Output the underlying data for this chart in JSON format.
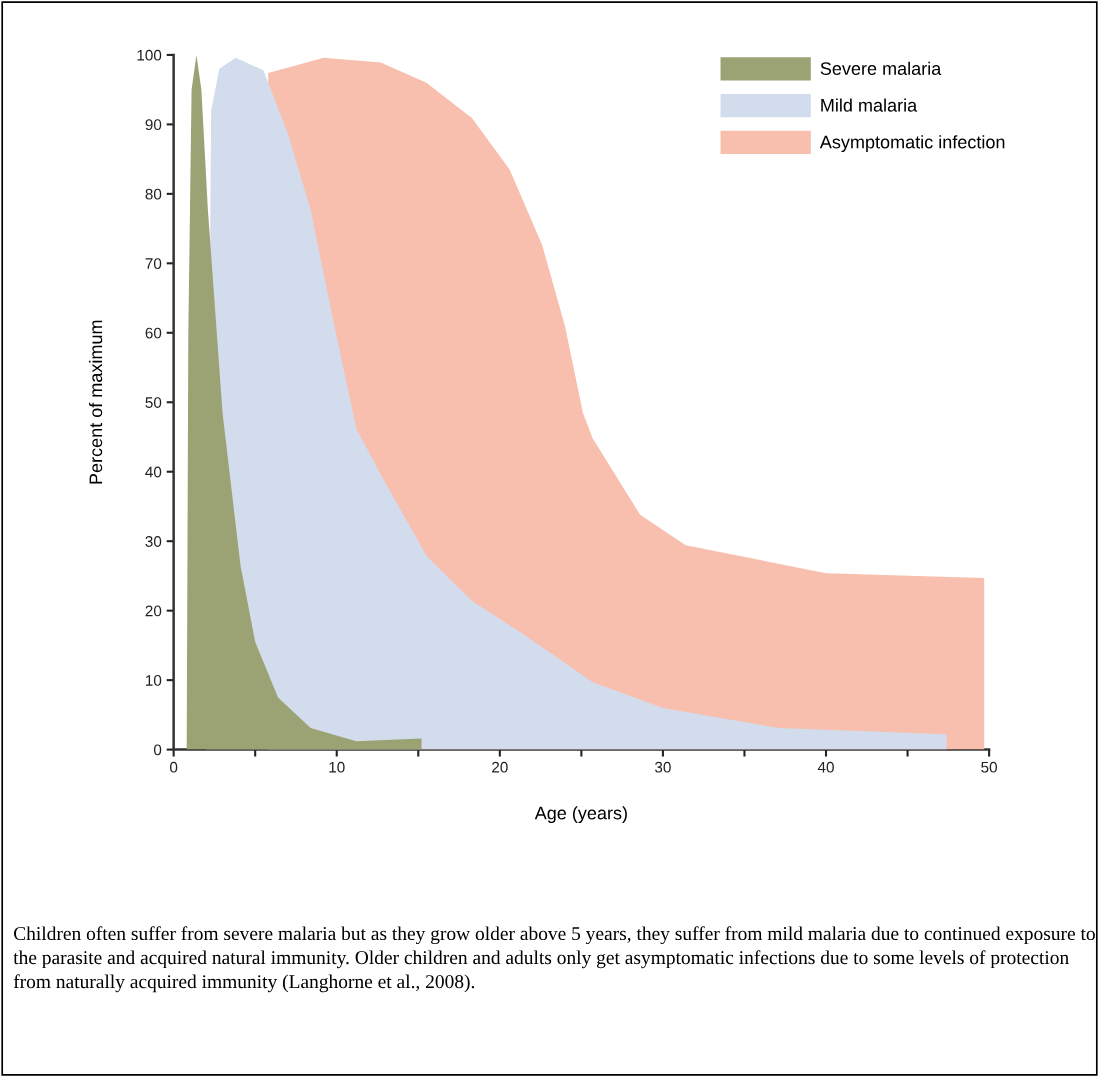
{
  "chart_data": {
    "type": "area",
    "xlabel": "Age (years)",
    "ylabel": "Percent of maximum",
    "xlim": [
      0,
      50
    ],
    "ylim": [
      0,
      100
    ],
    "xticks": [
      0,
      {
        "value": 5,
        "label": null
      },
      10,
      {
        "value": 15,
        "label": null
      },
      20,
      {
        "value": 25,
        "label": null
      },
      30,
      {
        "value": 35,
        "label": null
      },
      40,
      {
        "value": 45,
        "label": null
      },
      50
    ],
    "yticks": [
      0,
      10,
      20,
      30,
      40,
      50,
      60,
      70,
      80,
      90,
      100
    ],
    "grid": false,
    "legend": "top right",
    "series": [
      {
        "name": "Severe malaria",
        "color": "#9ba274",
        "x": [
          0.8,
          0.9,
          1.1,
          1.4,
          1.7,
          2.1,
          3.0,
          4.1,
          5.0,
          6.4,
          8.4,
          11.2,
          15.2,
          15.2
        ],
        "values": [
          0,
          60,
          95,
          100,
          95,
          77.7,
          48.4,
          26.5,
          15.5,
          7.5,
          3.1,
          1.2,
          1.6,
          0
        ]
      },
      {
        "name": "Mild malaria",
        "color": "#d3dcec",
        "x": [
          2.0,
          2.3,
          2.8,
          3.8,
          5.5,
          7.0,
          8.4,
          9.8,
          11.2,
          12.7,
          15.5,
          18.3,
          21.2,
          25.7,
          30,
          37.1,
          47.4,
          47.4
        ],
        "values": [
          0,
          92,
          98,
          99.6,
          97.8,
          88.7,
          77.7,
          61.6,
          46.2,
          39.6,
          27.9,
          21.4,
          17,
          9.7,
          6,
          3.1,
          2.2,
          0
        ]
      },
      {
        "name": "Asymptomatic infection",
        "color": "#f8bfae",
        "x": [
          5.8,
          5.8,
          9.2,
          12.7,
          15.5,
          18.3,
          20.6,
          22.6,
          24.0,
          25.1,
          25.7,
          28.6,
          31.4,
          40,
          49.7,
          49.7
        ],
        "values": [
          0,
          97.4,
          99.6,
          98.9,
          96,
          90.9,
          83.5,
          72.6,
          60.9,
          48.4,
          44.8,
          33.8,
          29.4,
          25.4,
          24.7,
          0
        ]
      }
    ],
    "annotations": [
      "Children often suffer from severe malaria but as they grow older above 5 years, they suffer from mild malaria due to continued exposure to the parasite and acquired natural immunity. Older children and adults only get asymptomatic infections due to some levels of protection from naturally acquired immunity (Langhorne et al., 2008)."
    ]
  }
}
